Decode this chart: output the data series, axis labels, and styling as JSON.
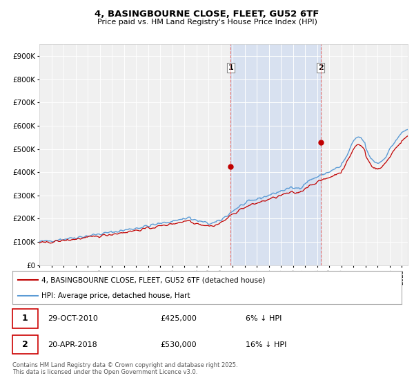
{
  "title_line1": "4, BASINGBOURNE CLOSE, FLEET, GU52 6TF",
  "title_line2": "Price paid vs. HM Land Registry's House Price Index (HPI)",
  "ylim": [
    0,
    950000
  ],
  "yticks": [
    0,
    100000,
    200000,
    300000,
    400000,
    500000,
    600000,
    700000,
    800000,
    900000
  ],
  "ytick_labels": [
    "£0",
    "£100K",
    "£200K",
    "£300K",
    "£400K",
    "£500K",
    "£600K",
    "£700K",
    "£800K",
    "£900K"
  ],
  "hpi_color": "#5b9bd5",
  "price_color": "#c00000",
  "vline_color": "#e07070",
  "bg_color": "#ffffff",
  "plot_bg_color": "#f0f0f0",
  "shade_color": "#c8d8f0",
  "legend_label_price": "4, BASINGBOURNE CLOSE, FLEET, GU52 6TF (detached house)",
  "legend_label_hpi": "HPI: Average price, detached house, Hart",
  "transaction1_date": "29-OCT-2010",
  "transaction1_price": "£425,000",
  "transaction1_hpi": "6% ↓ HPI",
  "transaction2_date": "20-APR-2018",
  "transaction2_price": "£530,000",
  "transaction2_hpi": "16% ↓ HPI",
  "footnote": "Contains HM Land Registry data © Crown copyright and database right 2025.\nThis data is licensed under the Open Government Licence v3.0.",
  "vline1_x": 2010.83,
  "vline2_x": 2018.3,
  "marker1_y": 425000,
  "marker2_y": 530000,
  "xmin": 1995,
  "xmax": 2025.5,
  "xticks": [
    1995,
    1996,
    1997,
    1998,
    1999,
    2000,
    2001,
    2002,
    2003,
    2004,
    2005,
    2006,
    2007,
    2008,
    2009,
    2010,
    2011,
    2012,
    2013,
    2014,
    2015,
    2016,
    2017,
    2018,
    2019,
    2020,
    2021,
    2022,
    2023,
    2024,
    2025
  ]
}
